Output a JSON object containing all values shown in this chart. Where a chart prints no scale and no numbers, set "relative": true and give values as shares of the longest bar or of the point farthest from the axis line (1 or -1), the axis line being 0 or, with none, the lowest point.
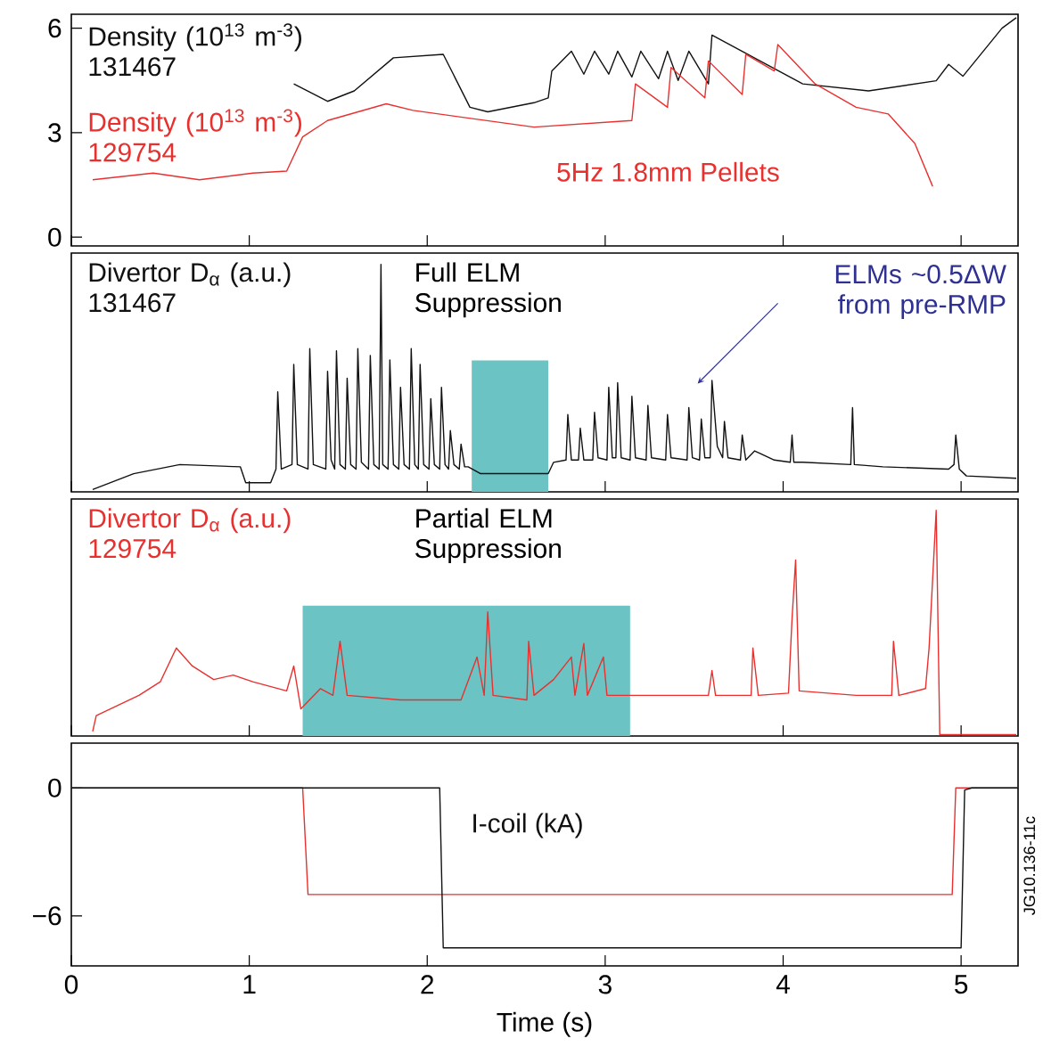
{
  "chart_data": [
    {
      "type": "line",
      "xlim": [
        0,
        5.32
      ],
      "xticks": [
        0,
        1,
        2,
        3,
        4,
        5
      ],
      "ylim": [
        -0.25,
        6.4
      ],
      "yticks": [
        0,
        3,
        6
      ],
      "tick_labels": "y",
      "annotations": [
        "5Hz 1.8mm Pellets"
      ],
      "series": [
        {
          "name": "Density (10$^{13}$ m$^{-3}$) 131467",
          "color": "#111111",
          "x": [
            1.25,
            1.44,
            1.59,
            1.81,
            2.09,
            2.24,
            2.34,
            2.6,
            2.68,
            2.7,
            2.81,
            2.88,
            2.94,
            3.02,
            3.07,
            3.15,
            3.2,
            3.3,
            3.35,
            3.41,
            3.47,
            3.58,
            3.6,
            4.11,
            4.48,
            4.86,
            4.93,
            5.01,
            5.23,
            5.31
          ],
          "values": [
            4.4,
            3.9,
            4.2,
            5.15,
            5.25,
            3.73,
            3.6,
            3.86,
            4.0,
            4.77,
            5.34,
            4.68,
            5.34,
            4.68,
            5.34,
            4.6,
            5.34,
            4.55,
            5.34,
            4.5,
            5.34,
            4.4,
            5.8,
            4.4,
            4.2,
            4.49,
            4.96,
            4.62,
            6.0,
            6.3
          ]
        },
        {
          "name": "Density (10$^{13}$ m$^{-3}$) 129754",
          "color": "#e8312f",
          "x": [
            0.12,
            0.46,
            0.72,
            1.02,
            1.21,
            1.3,
            1.44,
            1.77,
            1.92,
            2.6,
            3.15,
            3.17,
            3.35,
            3.37,
            3.56,
            3.58,
            3.77,
            3.79,
            3.95,
            3.97,
            4.18,
            4.41,
            4.59,
            4.74,
            4.84
          ],
          "values": [
            1.65,
            1.84,
            1.65,
            1.84,
            1.9,
            2.88,
            3.35,
            3.83,
            3.64,
            3.16,
            3.35,
            4.4,
            3.73,
            4.87,
            4.0,
            5.06,
            4.1,
            5.25,
            4.77,
            5.53,
            4.4,
            3.73,
            3.54,
            2.69,
            1.46
          ]
        }
      ]
    },
    {
      "type": "line",
      "relative": true,
      "xlim": [
        0,
        5.32
      ],
      "xticks": [
        0,
        1,
        2,
        3,
        4,
        5
      ],
      "tick_labels": false,
      "bands": [
        {
          "axis": "x",
          "from": 2.25,
          "to": 2.68,
          "label": "Full ELM Suppression",
          "color": "#6cc3c3"
        }
      ],
      "annotations": [
        "ELMs ~0.5ΔW from pre-RMP"
      ],
      "series": [
        {
          "name": "Divertor D$_{α}$ (a.u.) 131467",
          "color": "#111111",
          "x": [
            0.12,
            0.35,
            0.61,
            0.95,
            0.98,
            1.12,
            1.15,
            1.16,
            1.18,
            1.24,
            1.25,
            1.27,
            1.33,
            1.34,
            1.36,
            1.43,
            1.44,
            1.46,
            1.48,
            1.49,
            1.51,
            1.54,
            1.55,
            1.57,
            1.6,
            1.61,
            1.63,
            1.67,
            1.68,
            1.7,
            1.73,
            1.74,
            1.75,
            1.78,
            1.79,
            1.81,
            1.84,
            1.85,
            1.87,
            1.9,
            1.91,
            1.93,
            1.95,
            1.96,
            1.98,
            2.01,
            2.02,
            2.04,
            2.07,
            2.08,
            2.1,
            2.12,
            2.13,
            2.15,
            2.18,
            2.19,
            2.21,
            2.23,
            2.3,
            2.68,
            2.71,
            2.78,
            2.79,
            2.81,
            2.85,
            2.86,
            2.88,
            2.93,
            2.94,
            2.96,
            3.01,
            3.02,
            3.04,
            3.06,
            3.07,
            3.09,
            3.14,
            3.15,
            3.17,
            3.23,
            3.24,
            3.26,
            3.34,
            3.35,
            3.37,
            3.46,
            3.47,
            3.49,
            3.53,
            3.54,
            3.56,
            3.59,
            3.6,
            3.63,
            3.66,
            3.67,
            3.69,
            3.76,
            3.77,
            3.79,
            3.84,
            3.95,
            4.04,
            4.05,
            4.06,
            4.11,
            4.38,
            4.39,
            4.4,
            4.56,
            4.93,
            4.96,
            4.97,
            4.99,
            5.03,
            5.31
          ],
          "values": [
            0.01,
            0.08,
            0.12,
            0.11,
            0.04,
            0.04,
            0.1,
            0.44,
            0.1,
            0.12,
            0.56,
            0.12,
            0.1,
            0.63,
            0.12,
            0.1,
            0.53,
            0.14,
            0.1,
            0.62,
            0.12,
            0.1,
            0.5,
            0.12,
            0.1,
            0.63,
            0.13,
            0.1,
            0.6,
            0.12,
            0.1,
            1.0,
            0.12,
            0.1,
            0.58,
            0.12,
            0.1,
            0.46,
            0.12,
            0.1,
            0.63,
            0.12,
            0.1,
            0.56,
            0.12,
            0.1,
            0.41,
            0.12,
            0.1,
            0.46,
            0.12,
            0.1,
            0.27,
            0.12,
            0.1,
            0.21,
            0.11,
            0.11,
            0.08,
            0.08,
            0.13,
            0.14,
            0.34,
            0.14,
            0.14,
            0.28,
            0.14,
            0.14,
            0.35,
            0.15,
            0.14,
            0.46,
            0.15,
            0.15,
            0.48,
            0.15,
            0.14,
            0.42,
            0.15,
            0.14,
            0.38,
            0.15,
            0.14,
            0.34,
            0.15,
            0.14,
            0.37,
            0.15,
            0.14,
            0.32,
            0.15,
            0.15,
            0.49,
            0.2,
            0.15,
            0.31,
            0.15,
            0.14,
            0.25,
            0.14,
            0.18,
            0.14,
            0.13,
            0.25,
            0.13,
            0.13,
            0.12,
            0.37,
            0.12,
            0.11,
            0.1,
            0.12,
            0.25,
            0.1,
            0.07,
            0.06
          ]
        }
      ]
    },
    {
      "type": "line",
      "relative": true,
      "xlim": [
        0,
        5.32
      ],
      "xticks": [
        0,
        1,
        2,
        3,
        4,
        5
      ],
      "tick_labels": false,
      "bands": [
        {
          "axis": "x",
          "from": 1.3,
          "to": 3.14,
          "label": "Partial ELM Suppression",
          "color": "#6cc3c3"
        }
      ],
      "series": [
        {
          "name": "Divertor D$_{α}$ (a.u.) 129754",
          "color": "#e8312f",
          "x": [
            0.12,
            0.14,
            0.38,
            0.5,
            0.59,
            0.68,
            0.8,
            0.91,
            1.02,
            1.21,
            1.25,
            1.29,
            1.4,
            1.47,
            1.51,
            1.55,
            1.85,
            2.19,
            2.28,
            2.32,
            2.34,
            2.37,
            2.56,
            2.57,
            2.6,
            2.71,
            2.81,
            2.83,
            2.88,
            2.9,
            2.99,
            3.01,
            3.2,
            3.58,
            3.6,
            3.62,
            3.82,
            3.83,
            3.86,
            4.03,
            4.05,
            4.07,
            4.09,
            4.41,
            4.61,
            4.62,
            4.65,
            4.8,
            4.82,
            4.86,
            4.88,
            5.31
          ],
          "values": [
            0.02,
            0.09,
            0.18,
            0.24,
            0.39,
            0.31,
            0.25,
            0.27,
            0.24,
            0.2,
            0.31,
            0.12,
            0.21,
            0.18,
            0.42,
            0.18,
            0.16,
            0.16,
            0.35,
            0.18,
            0.55,
            0.18,
            0.16,
            0.42,
            0.18,
            0.25,
            0.35,
            0.18,
            0.41,
            0.18,
            0.35,
            0.18,
            0.18,
            0.18,
            0.29,
            0.18,
            0.18,
            0.39,
            0.18,
            0.19,
            0.52,
            0.78,
            0.2,
            0.18,
            0.18,
            0.42,
            0.18,
            0.21,
            0.39,
            1.0,
            0.006,
            0.006
          ]
        }
      ]
    },
    {
      "type": "line",
      "xlim": [
        0,
        5.32
      ],
      "xticks": [
        0,
        1,
        2,
        3,
        4,
        5
      ],
      "ylim": [
        -8.35,
        2.1
      ],
      "yticks": [
        0,
        {
          "value": -6,
          "label": "−6"
        }
      ],
      "xlabel": "Time (s)",
      "annotations": [
        "I-coil (kA)",
        "JG10.136-11c"
      ],
      "series": [
        {
          "color": "#e8312f",
          "x": [
            0,
            1.3,
            1.33,
            4.95,
            4.97,
            5.32
          ],
          "values": [
            0,
            0,
            -5.0,
            -5.0,
            0,
            0
          ]
        },
        {
          "color": "#111111",
          "x": [
            0,
            2.07,
            2.09,
            5.0,
            5.02,
            5.06,
            5.32
          ],
          "values": [
            0,
            0,
            -7.5,
            -7.5,
            -0.1,
            0,
            0
          ]
        }
      ]
    }
  ]
}
